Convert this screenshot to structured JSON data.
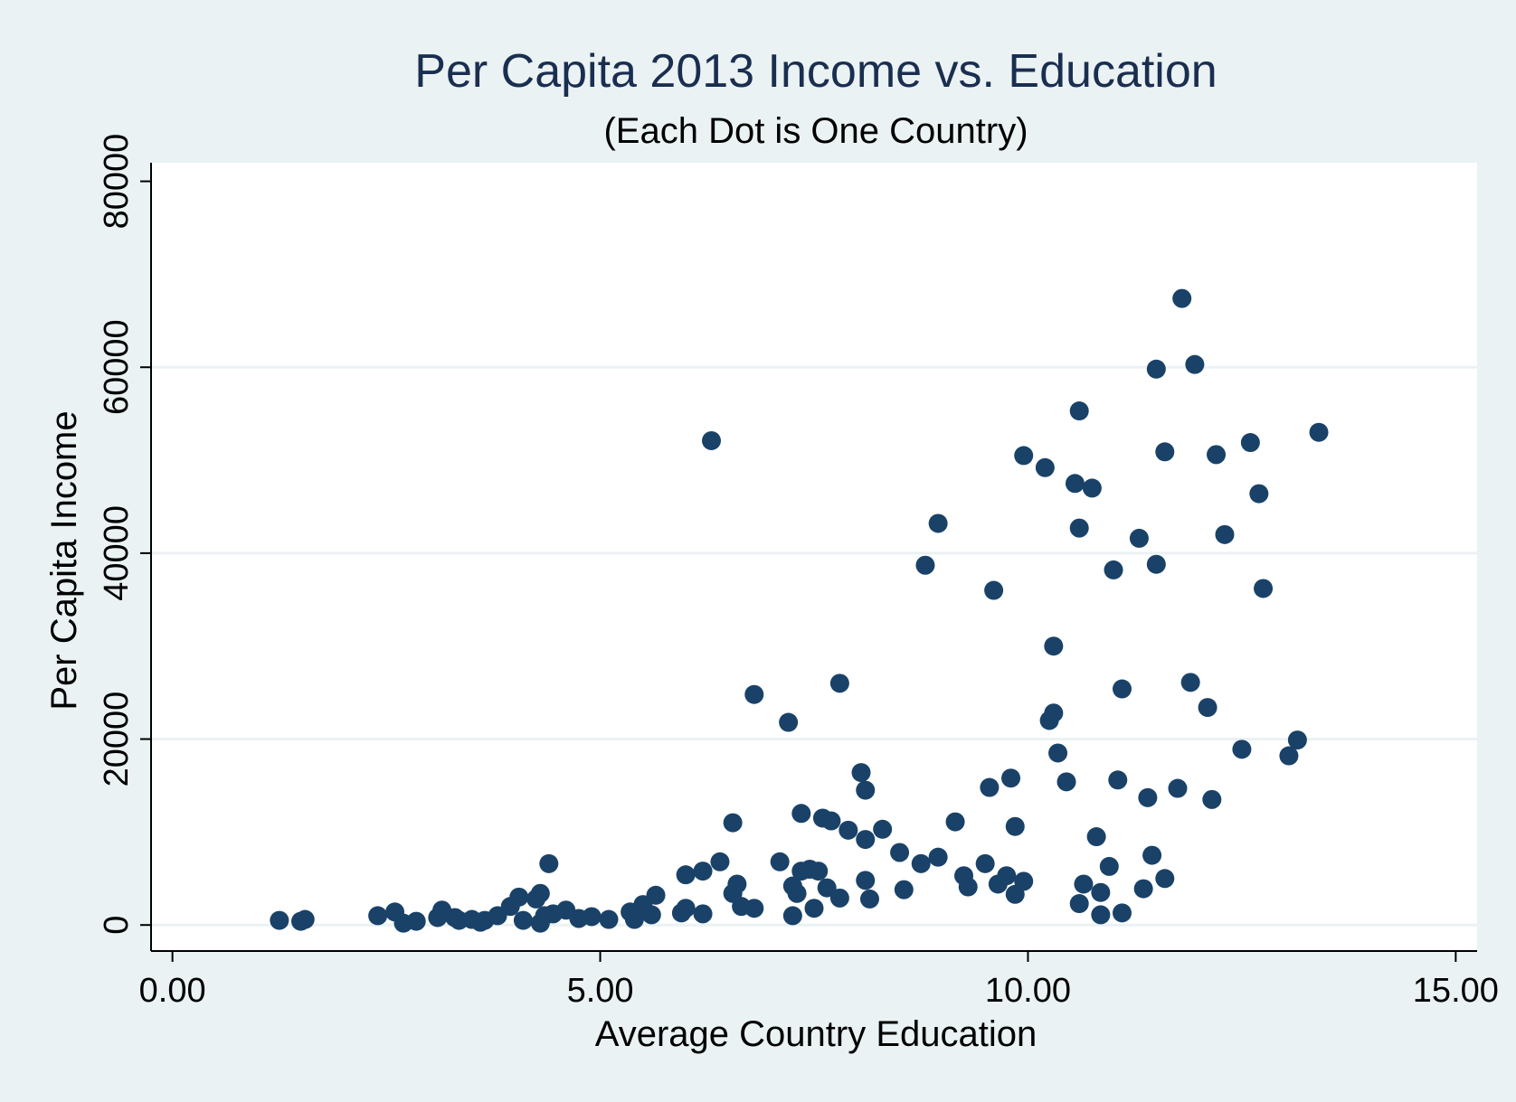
{
  "chart_data": {
    "type": "scatter",
    "title": "Per Capita 2013 Income vs. Education",
    "subtitle": "(Each Dot is One Country)",
    "xlabel": "Average Country Education",
    "ylabel": "Per Capita Income",
    "xlim": [
      -0.25,
      15.25
    ],
    "ylim": [
      -2800,
      82000
    ],
    "x_ticks": [
      0,
      5,
      10,
      15
    ],
    "x_tick_labels": [
      "0.00",
      "5.00",
      "10.00",
      "15.00"
    ],
    "y_ticks": [
      0,
      20000,
      40000,
      60000,
      80000
    ],
    "y_tick_labels": [
      "0",
      "20000",
      "40000",
      "60000",
      "80000"
    ],
    "grid": "horizontal",
    "legend": "none",
    "colors": {
      "marker": "#1a4268",
      "background": "#eaf2f3",
      "plot_region": "#ffffff",
      "gridline": "#eaf2f3",
      "title": "#1a2e50"
    },
    "points": [
      [
        1.25,
        500
      ],
      [
        1.5,
        400
      ],
      [
        1.55,
        600
      ],
      [
        2.4,
        1000
      ],
      [
        2.6,
        1400
      ],
      [
        2.7,
        200
      ],
      [
        2.85,
        400
      ],
      [
        3.1,
        800
      ],
      [
        3.15,
        1600
      ],
      [
        3.3,
        800
      ],
      [
        3.35,
        500
      ],
      [
        3.5,
        600
      ],
      [
        3.6,
        300
      ],
      [
        3.65,
        500
      ],
      [
        3.8,
        1000
      ],
      [
        3.95,
        2000
      ],
      [
        4.05,
        3000
      ],
      [
        4.1,
        500
      ],
      [
        4.25,
        2800
      ],
      [
        4.3,
        3400
      ],
      [
        4.3,
        200
      ],
      [
        4.35,
        1000
      ],
      [
        4.4,
        6600
      ],
      [
        4.45,
        1200
      ],
      [
        4.6,
        1600
      ],
      [
        4.75,
        700
      ],
      [
        4.9,
        900
      ],
      [
        5.1,
        600
      ],
      [
        5.35,
        1400
      ],
      [
        5.4,
        600
      ],
      [
        5.5,
        2200
      ],
      [
        5.6,
        1100
      ],
      [
        5.65,
        3200
      ],
      [
        5.95,
        1300
      ],
      [
        6.0,
        5400
      ],
      [
        6.0,
        1800
      ],
      [
        6.2,
        5800
      ],
      [
        6.2,
        1200
      ],
      [
        6.3,
        52100
      ],
      [
        6.4,
        6800
      ],
      [
        6.55,
        11000
      ],
      [
        6.55,
        3400
      ],
      [
        6.6,
        4400
      ],
      [
        6.65,
        2000
      ],
      [
        6.8,
        1800
      ],
      [
        6.8,
        24800
      ],
      [
        7.1,
        6800
      ],
      [
        7.2,
        21800
      ],
      [
        7.25,
        1000
      ],
      [
        7.25,
        4200
      ],
      [
        7.3,
        3400
      ],
      [
        7.35,
        12000
      ],
      [
        7.35,
        5800
      ],
      [
        7.45,
        6000
      ],
      [
        7.5,
        1800
      ],
      [
        7.55,
        5800
      ],
      [
        7.6,
        11500
      ],
      [
        7.65,
        4000
      ],
      [
        7.7,
        11200
      ],
      [
        7.8,
        2900
      ],
      [
        7.8,
        26000
      ],
      [
        7.9,
        10200
      ],
      [
        8.05,
        16400
      ],
      [
        8.1,
        14500
      ],
      [
        8.1,
        9200
      ],
      [
        8.1,
        4800
      ],
      [
        8.15,
        2800
      ],
      [
        8.3,
        10300
      ],
      [
        8.5,
        7800
      ],
      [
        8.55,
        3800
      ],
      [
        8.75,
        6600
      ],
      [
        8.8,
        38700
      ],
      [
        8.95,
        7300
      ],
      [
        8.95,
        43200
      ],
      [
        9.15,
        11100
      ],
      [
        9.25,
        5300
      ],
      [
        9.3,
        4100
      ],
      [
        9.5,
        6600
      ],
      [
        9.55,
        14800
      ],
      [
        9.6,
        36000
      ],
      [
        9.65,
        4400
      ],
      [
        9.75,
        5300
      ],
      [
        9.8,
        15800
      ],
      [
        9.85,
        3300
      ],
      [
        9.85,
        10600
      ],
      [
        9.95,
        4700
      ],
      [
        9.95,
        50500
      ],
      [
        10.2,
        49200
      ],
      [
        10.25,
        22000
      ],
      [
        10.3,
        30000
      ],
      [
        10.3,
        22800
      ],
      [
        10.35,
        18500
      ],
      [
        10.45,
        15400
      ],
      [
        10.55,
        47500
      ],
      [
        10.6,
        55300
      ],
      [
        10.6,
        42700
      ],
      [
        10.6,
        2300
      ],
      [
        10.65,
        4400
      ],
      [
        10.75,
        47000
      ],
      [
        10.8,
        9500
      ],
      [
        10.85,
        3500
      ],
      [
        10.85,
        1100
      ],
      [
        10.95,
        6300
      ],
      [
        11.0,
        38200
      ],
      [
        11.05,
        15600
      ],
      [
        11.1,
        25400
      ],
      [
        11.1,
        1300
      ],
      [
        11.3,
        41600
      ],
      [
        11.35,
        3900
      ],
      [
        11.4,
        13700
      ],
      [
        11.45,
        7500
      ],
      [
        11.5,
        59800
      ],
      [
        11.5,
        38800
      ],
      [
        11.6,
        50900
      ],
      [
        11.6,
        5000
      ],
      [
        11.75,
        14700
      ],
      [
        11.8,
        67400
      ],
      [
        11.9,
        26100
      ],
      [
        11.95,
        60300
      ],
      [
        12.1,
        23400
      ],
      [
        12.15,
        13500
      ],
      [
        12.2,
        50600
      ],
      [
        12.3,
        42000
      ],
      [
        12.5,
        18900
      ],
      [
        12.6,
        51900
      ],
      [
        12.7,
        46400
      ],
      [
        12.75,
        36200
      ],
      [
        13.05,
        18200
      ],
      [
        13.15,
        19900
      ],
      [
        13.4,
        53000
      ]
    ]
  }
}
